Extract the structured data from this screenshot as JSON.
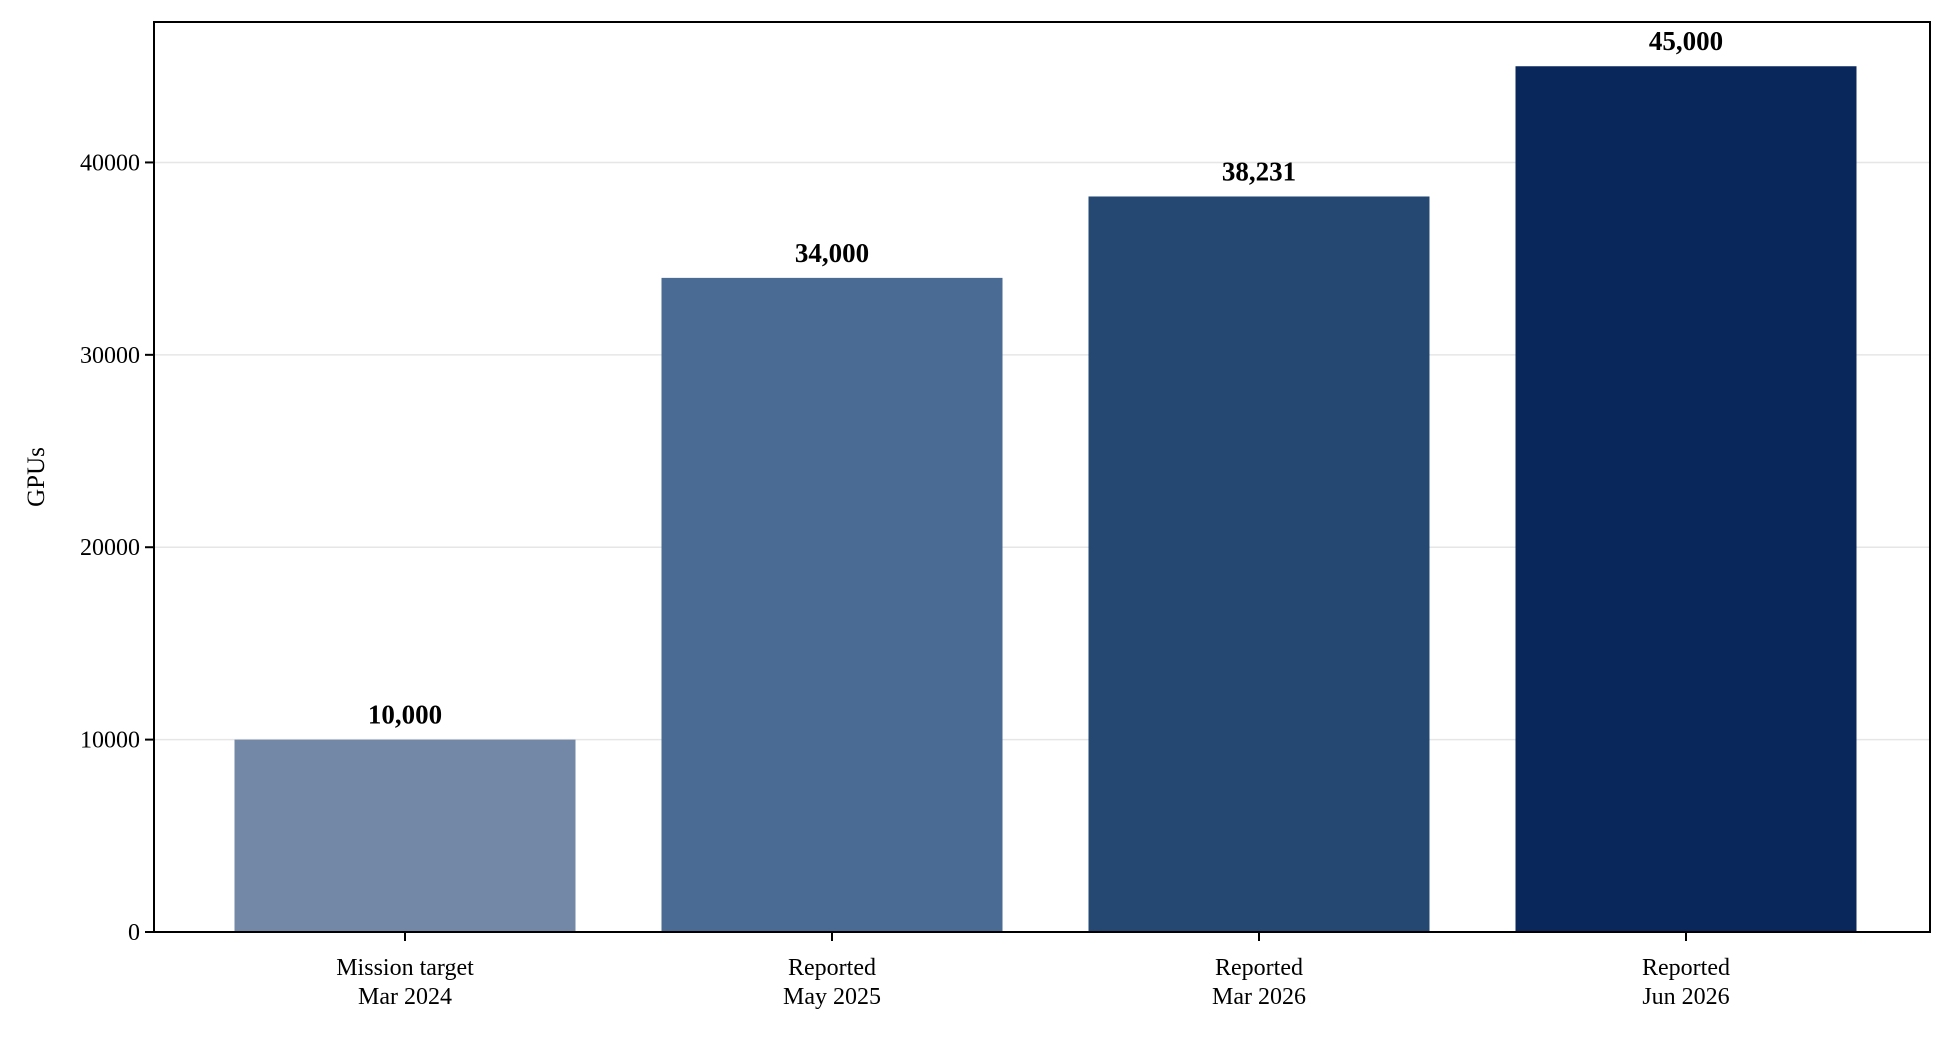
{
  "chart_data": {
    "type": "bar",
    "title": "",
    "xlabel": "",
    "ylabel": "GPUs",
    "ylim": [
      0,
      47300
    ],
    "yticks": [
      0,
      10000,
      20000,
      30000,
      40000
    ],
    "ytick_labels": [
      "0",
      "10000",
      "20000",
      "30000",
      "40000"
    ],
    "grid": "horizontal",
    "legend": "none",
    "categories": [
      [
        "Mission target",
        "Mar 2024"
      ],
      [
        "Reported",
        "May 2025"
      ],
      [
        "Reported",
        "Mar 2026"
      ],
      [
        "Reported",
        "Jun 2026"
      ]
    ],
    "values": [
      10000,
      34000,
      38231,
      45000
    ],
    "data_labels": [
      "10,000",
      "34,000",
      "38,231",
      "45,000"
    ],
    "colors": [
      "#7388a7",
      "#4a6b94",
      "#254873",
      "#0a275c"
    ]
  }
}
